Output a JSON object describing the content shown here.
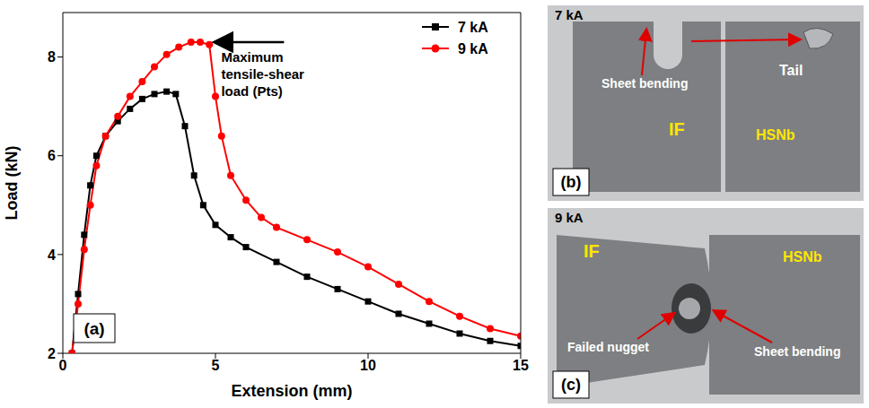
{
  "chart_data": {
    "type": "line",
    "panel_label": "(a)",
    "x_label": "Extension (mm)",
    "y_label": "Load (kN)",
    "xlim": [
      0,
      15
    ],
    "xticks": [
      0,
      5,
      10,
      15
    ],
    "ylim": [
      2,
      8.9
    ],
    "yticks": [
      2,
      4,
      6,
      8
    ],
    "legend": "top-right",
    "annotation": {
      "text": [
        "Maximum",
        "tensile-shear",
        "load (Pts)"
      ],
      "x": 4.6,
      "y": 8.3
    },
    "series": [
      {
        "name": "7 kA",
        "color": "#000000",
        "marker": "square",
        "x": [
          0.3,
          0.5,
          0.7,
          0.9,
          1.1,
          1.4,
          1.8,
          2.2,
          2.6,
          3.0,
          3.4,
          3.7,
          4.0,
          4.3,
          4.6,
          5.0,
          5.5,
          6.0,
          7.0,
          8.0,
          9.0,
          10.0,
          11.0,
          12.0,
          13.0,
          14.0,
          15.0
        ],
        "values": [
          2.0,
          3.2,
          4.4,
          5.4,
          6.0,
          6.4,
          6.7,
          6.95,
          7.15,
          7.25,
          7.3,
          7.25,
          6.6,
          5.6,
          5.0,
          4.6,
          4.35,
          4.15,
          3.85,
          3.55,
          3.3,
          3.05,
          2.8,
          2.6,
          2.4,
          2.25,
          2.15
        ]
      },
      {
        "name": "9 kA",
        "color": "#ff0000",
        "marker": "circle",
        "x": [
          0.3,
          0.5,
          0.7,
          0.9,
          1.1,
          1.4,
          1.8,
          2.2,
          2.6,
          3.0,
          3.4,
          3.8,
          4.2,
          4.5,
          4.8,
          5.0,
          5.2,
          5.5,
          6.0,
          6.5,
          7.0,
          8.0,
          9.0,
          10.0,
          11.0,
          12.0,
          13.0,
          14.0,
          15.0
        ],
        "values": [
          2.0,
          3.0,
          4.1,
          5.0,
          5.8,
          6.4,
          6.8,
          7.2,
          7.5,
          7.8,
          8.05,
          8.2,
          8.3,
          8.3,
          8.25,
          7.2,
          6.4,
          5.6,
          5.1,
          4.75,
          4.55,
          4.3,
          4.05,
          3.75,
          3.4,
          3.05,
          2.75,
          2.5,
          2.35
        ]
      }
    ]
  },
  "photos": [
    {
      "panel_label": "(b)",
      "title": "7 kA",
      "labels": [
        "Sheet bending",
        "Tail",
        "IF",
        "HSNb"
      ]
    },
    {
      "panel_label": "(c)",
      "title": "9 kA",
      "labels": [
        "IF",
        "Failed nugget",
        "Sheet bending",
        "HSNb"
      ]
    }
  ]
}
